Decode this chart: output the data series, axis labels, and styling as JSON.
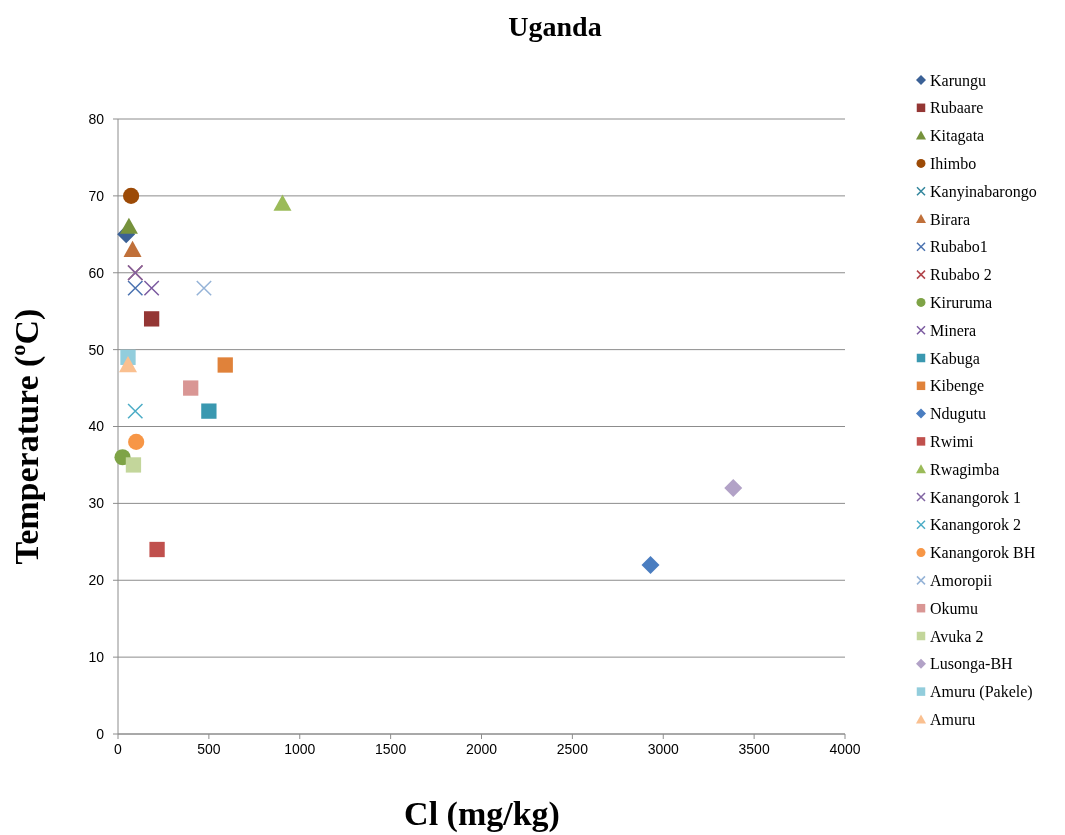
{
  "chart_data": {
    "type": "scatter",
    "title": "Uganda",
    "xlabel": "Cl  (mg/kg)",
    "ylabel": "Temperature (ºC)",
    "xlim": [
      0,
      4000
    ],
    "xticks": [
      0,
      500,
      1000,
      1500,
      2000,
      2500,
      3000,
      3500,
      4000
    ],
    "ylim": [
      0,
      80
    ],
    "yticks": [
      0,
      10,
      20,
      30,
      40,
      50,
      60,
      70,
      80
    ],
    "grid": "y",
    "legend": "right",
    "series": [
      {
        "name": "Karungu",
        "color": "#3b6196",
        "marker": "diamond",
        "x": [
          45
        ],
        "values": [
          65
        ]
      },
      {
        "name": "Rubaare",
        "color": "#943634",
        "marker": "square",
        "x": [
          185
        ],
        "values": [
          54
        ]
      },
      {
        "name": "Kitagata",
        "color": "#76923c",
        "marker": "triangle",
        "x": [
          60
        ],
        "values": [
          66
        ]
      },
      {
        "name": "Ihimbo",
        "color": "#9c4a06",
        "marker": "circle",
        "x": [
          72
        ],
        "values": [
          70
        ]
      },
      {
        "name": "Kanyinabarongo",
        "color": "#31859c",
        "marker": "cross",
        "x": [
          null
        ],
        "values": [
          null
        ]
      },
      {
        "name": "Birara",
        "color": "#c0703a",
        "marker": "triangle",
        "x": [
          80
        ],
        "values": [
          63
        ]
      },
      {
        "name": "Rubabo1",
        "color": "#4a72b0",
        "marker": "cross",
        "x": [
          95
        ],
        "values": [
          58
        ]
      },
      {
        "name": "Rubabo 2",
        "color": "#b0444a",
        "marker": "cross",
        "x": [
          95
        ],
        "values": [
          60
        ]
      },
      {
        "name": "Kiruruma",
        "color": "#7ea346",
        "marker": "circle",
        "x": [
          25
        ],
        "values": [
          36
        ]
      },
      {
        "name": "Minera",
        "color": "#7b5aa0",
        "marker": "cross",
        "x": [
          185
        ],
        "values": [
          58
        ]
      },
      {
        "name": "Kabuga",
        "color": "#3a98b0",
        "marker": "square",
        "x": [
          500
        ],
        "values": [
          42
        ]
      },
      {
        "name": "Kibenge",
        "color": "#e0823a",
        "marker": "square",
        "x": [
          590
        ],
        "values": [
          48
        ]
      },
      {
        "name": "Ndugutu",
        "color": "#4a7dc0",
        "marker": "diamond",
        "x": [
          2930
        ],
        "values": [
          22
        ]
      },
      {
        "name": "Rwimi",
        "color": "#c0504d",
        "marker": "square",
        "x": [
          215
        ],
        "values": [
          24
        ]
      },
      {
        "name": "Rwagimba",
        "color": "#9bbb59",
        "marker": "triangle",
        "x": [
          905
        ],
        "values": [
          69
        ]
      },
      {
        "name": "Kanangorok 1",
        "color": "#8064a2",
        "marker": "cross",
        "x": [
          95
        ],
        "values": [
          60
        ]
      },
      {
        "name": "Kanangorok 2",
        "color": "#4bacc6",
        "marker": "cross",
        "x": [
          95
        ],
        "values": [
          42
        ]
      },
      {
        "name": "Kanangorok BH",
        "color": "#f79646",
        "marker": "circle",
        "x": [
          100
        ],
        "values": [
          38
        ]
      },
      {
        "name": "Amoropii",
        "color": "#95b3d7",
        "marker": "cross",
        "x": [
          473
        ],
        "values": [
          58
        ]
      },
      {
        "name": "Okumu",
        "color": "#d99694",
        "marker": "square",
        "x": [
          400
        ],
        "values": [
          45
        ]
      },
      {
        "name": "Avuka 2",
        "color": "#c3d69b",
        "marker": "square",
        "x": [
          85
        ],
        "values": [
          35
        ]
      },
      {
        "name": "Lusonga-BH",
        "color": "#b2a2c7",
        "marker": "diamond",
        "x": [
          3385
        ],
        "values": [
          32
        ]
      },
      {
        "name": "Amuru (Pakele)",
        "color": "#92cddc",
        "marker": "square",
        "x": [
          55
        ],
        "values": [
          49
        ]
      },
      {
        "name": "Amuru",
        "color": "#fac090",
        "marker": "triangle",
        "x": [
          55
        ],
        "values": [
          48
        ]
      }
    ]
  }
}
